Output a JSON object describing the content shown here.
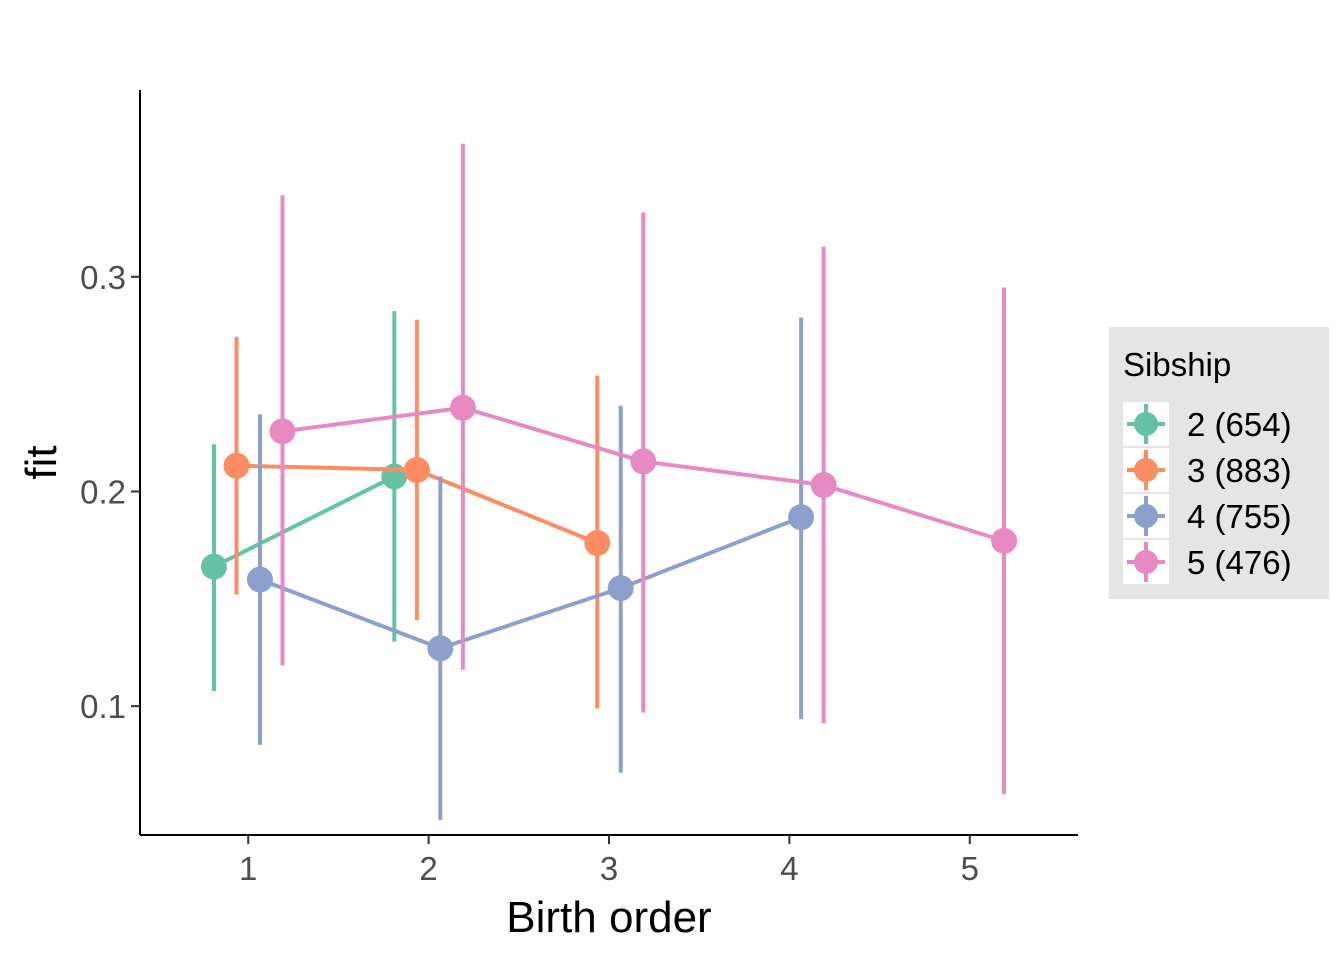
{
  "chart_data": {
    "type": "line",
    "title": "",
    "xlabel": "Birth order",
    "ylabel": "fit",
    "x_ticks": [
      "1",
      "2",
      "3",
      "4",
      "5"
    ],
    "y_ticks": [
      "0.1",
      "0.2",
      "0.3"
    ],
    "xlim": [
      0.4,
      5.6
    ],
    "ylim": [
      0.04,
      0.387
    ],
    "grid": false,
    "legend": {
      "title": "Sibship",
      "placement": "right"
    },
    "series": [
      {
        "name": "2 (654)",
        "color": "#66c2a5",
        "points": [
          {
            "x": 1,
            "fit": 0.165,
            "lower": 0.107,
            "upper": 0.222
          },
          {
            "x": 2,
            "fit": 0.207,
            "lower": 0.13,
            "upper": 0.284
          }
        ]
      },
      {
        "name": "3 (883)",
        "color": "#fc8d62",
        "points": [
          {
            "x": 1,
            "fit": 0.212,
            "lower": 0.152,
            "upper": 0.272
          },
          {
            "x": 2,
            "fit": 0.21,
            "lower": 0.14,
            "upper": 0.28
          },
          {
            "x": 3,
            "fit": 0.176,
            "lower": 0.099,
            "upper": 0.254
          }
        ]
      },
      {
        "name": "4 (755)",
        "color": "#8da0cb",
        "points": [
          {
            "x": 1,
            "fit": 0.159,
            "lower": 0.082,
            "upper": 0.236
          },
          {
            "x": 2,
            "fit": 0.127,
            "lower": 0.047,
            "upper": 0.207
          },
          {
            "x": 3,
            "fit": 0.155,
            "lower": 0.069,
            "upper": 0.24
          },
          {
            "x": 4,
            "fit": 0.188,
            "lower": 0.094,
            "upper": 0.281
          }
        ]
      },
      {
        "name": "5 (476)",
        "color": "#e78ac3",
        "points": [
          {
            "x": 1,
            "fit": 0.228,
            "lower": 0.119,
            "upper": 0.338
          },
          {
            "x": 2,
            "fit": 0.239,
            "lower": 0.117,
            "upper": 0.362
          },
          {
            "x": 3,
            "fit": 0.214,
            "lower": 0.097,
            "upper": 0.33
          },
          {
            "x": 4,
            "fit": 0.203,
            "lower": 0.092,
            "upper": 0.314
          },
          {
            "x": 5,
            "fit": 0.177,
            "lower": 0.059,
            "upper": 0.295
          }
        ]
      }
    ]
  }
}
